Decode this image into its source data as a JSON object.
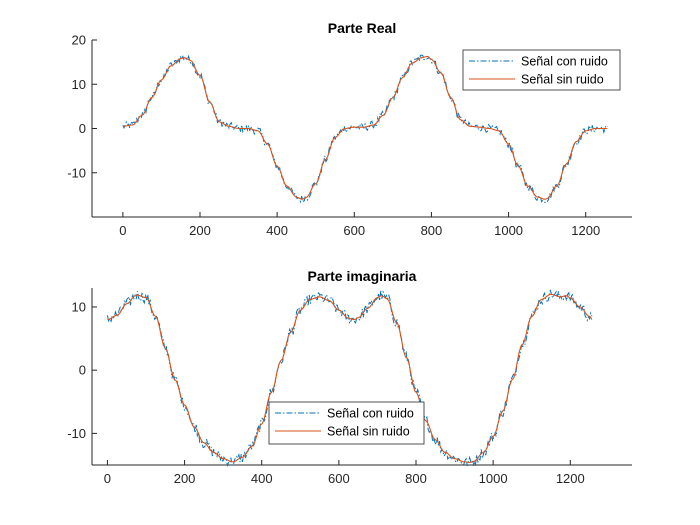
{
  "chart_data": [
    {
      "type": "line",
      "title": "Parte Real",
      "xlabel": "",
      "ylabel": "",
      "xlim": [
        -80,
        1320
      ],
      "ylim": [
        -20,
        20
      ],
      "xticks": [
        0,
        200,
        400,
        600,
        800,
        1000,
        1200
      ],
      "yticks": [
        -10,
        0,
        10,
        20
      ],
      "legend_position": "top-right",
      "grid": false,
      "series": [
        {
          "name": "Señal con ruido",
          "color": "#0072bd",
          "style": "dash-dot",
          "noisy": true,
          "x": [
            0,
            25,
            50,
            75,
            100,
            125,
            150,
            160,
            175,
            200,
            225,
            250,
            275,
            300,
            325,
            350,
            375,
            400,
            425,
            450,
            465,
            475,
            500,
            525,
            550,
            575,
            600,
            625,
            650,
            675,
            700,
            725,
            750,
            775,
            790,
            800,
            825,
            850,
            875,
            900,
            925,
            950,
            975,
            1000,
            1025,
            1050,
            1075,
            1095,
            1100,
            1125,
            1150,
            1175,
            1200,
            1225,
            1250,
            1256
          ],
          "y": [
            0.5,
            0.8,
            3.0,
            7.0,
            11.0,
            14.2,
            15.8,
            16.0,
            15.4,
            12.0,
            6.0,
            1.5,
            0.5,
            0.0,
            0.0,
            -0.5,
            -3.5,
            -8.5,
            -13.0,
            -15.5,
            -16.0,
            -15.6,
            -12.5,
            -7.0,
            -2.0,
            0.0,
            0.3,
            0.3,
            0.8,
            3.0,
            7.0,
            11.5,
            14.8,
            16.0,
            16.3,
            15.6,
            12.5,
            7.0,
            2.0,
            0.5,
            0.3,
            0.0,
            -0.5,
            -3.5,
            -8.5,
            -13.0,
            -15.5,
            -16.0,
            -15.8,
            -13.0,
            -8.0,
            -3.0,
            -0.5,
            0.0,
            0.0,
            0.0
          ]
        },
        {
          "name": "Señal sin ruido",
          "color": "#d95319",
          "style": "solid",
          "noisy": false,
          "x": [
            0,
            25,
            50,
            75,
            100,
            125,
            150,
            160,
            175,
            200,
            225,
            250,
            275,
            300,
            325,
            350,
            375,
            400,
            425,
            450,
            465,
            475,
            500,
            525,
            550,
            575,
            600,
            625,
            650,
            675,
            700,
            725,
            750,
            775,
            790,
            800,
            825,
            850,
            875,
            900,
            925,
            950,
            975,
            1000,
            1025,
            1050,
            1075,
            1095,
            1100,
            1125,
            1150,
            1175,
            1200,
            1225,
            1250,
            1256
          ],
          "y": [
            0.5,
            0.8,
            3.0,
            7.0,
            11.0,
            14.2,
            15.8,
            16.0,
            15.4,
            12.0,
            6.0,
            1.5,
            0.5,
            0.0,
            0.0,
            -0.5,
            -3.5,
            -8.5,
            -13.0,
            -15.5,
            -16.0,
            -15.6,
            -12.5,
            -7.0,
            -2.0,
            0.0,
            0.3,
            0.3,
            0.8,
            3.0,
            7.0,
            11.5,
            14.8,
            16.0,
            16.3,
            15.6,
            12.5,
            7.0,
            2.0,
            0.5,
            0.3,
            0.0,
            -0.5,
            -3.5,
            -8.5,
            -13.0,
            -15.5,
            -16.0,
            -15.8,
            -13.0,
            -8.0,
            -3.0,
            -0.5,
            0.0,
            0.0,
            0.0
          ]
        }
      ]
    },
    {
      "type": "line",
      "title": "Parte imaginaria",
      "xlabel": "",
      "ylabel": "",
      "xlim": [
        -40,
        1360
      ],
      "ylim": [
        -15,
        13
      ],
      "xticks": [
        0,
        200,
        400,
        600,
        800,
        1000,
        1200
      ],
      "yticks": [
        -10,
        0,
        10
      ],
      "legend_position": "bottom-center",
      "grid": false,
      "series": [
        {
          "name": "Señal con ruido",
          "color": "#0072bd",
          "style": "dash-dot",
          "noisy": true,
          "x": [
            0,
            25,
            50,
            75,
            100,
            125,
            150,
            175,
            200,
            225,
            250,
            275,
            300,
            325,
            350,
            375,
            400,
            425,
            450,
            475,
            500,
            525,
            550,
            575,
            600,
            625,
            640,
            650,
            675,
            700,
            710,
            725,
            750,
            775,
            800,
            825,
            850,
            875,
            900,
            925,
            940,
            950,
            975,
            1000,
            1025,
            1050,
            1075,
            1100,
            1125,
            1150,
            1175,
            1190,
            1200,
            1225,
            1250,
            1256
          ],
          "y": [
            8.0,
            8.7,
            10.5,
            11.9,
            11.5,
            8.5,
            3.5,
            -1.5,
            -5.5,
            -9.0,
            -11.5,
            -13.0,
            -14.0,
            -14.5,
            -13.8,
            -12.0,
            -8.5,
            -3.5,
            1.5,
            6.0,
            9.5,
            11.2,
            11.6,
            11.0,
            9.5,
            8.2,
            8.0,
            8.3,
            9.8,
            11.5,
            11.8,
            11.3,
            7.5,
            2.0,
            -3.5,
            -8.0,
            -11.0,
            -13.0,
            -14.0,
            -14.5,
            -14.6,
            -14.4,
            -13.0,
            -10.5,
            -6.5,
            -1.5,
            4.0,
            8.5,
            11.2,
            12.0,
            11.6,
            11.8,
            11.4,
            10.0,
            8.5,
            8.0
          ]
        },
        {
          "name": "Señal sin ruido",
          "color": "#d95319",
          "style": "solid",
          "noisy": false,
          "x": [
            0,
            25,
            50,
            75,
            100,
            125,
            150,
            175,
            200,
            225,
            250,
            275,
            300,
            325,
            350,
            375,
            400,
            425,
            450,
            475,
            500,
            525,
            550,
            575,
            600,
            625,
            640,
            650,
            675,
            700,
            710,
            725,
            750,
            775,
            800,
            825,
            850,
            875,
            900,
            925,
            940,
            950,
            975,
            1000,
            1025,
            1050,
            1075,
            1100,
            1125,
            1150,
            1175,
            1190,
            1200,
            1225,
            1250,
            1256
          ],
          "y": [
            8.0,
            8.7,
            10.5,
            11.9,
            11.5,
            8.5,
            3.5,
            -1.5,
            -5.5,
            -9.0,
            -11.5,
            -13.0,
            -14.0,
            -14.5,
            -13.8,
            -12.0,
            -8.5,
            -3.5,
            1.5,
            6.0,
            9.5,
            11.2,
            11.6,
            11.0,
            9.5,
            8.2,
            8.0,
            8.3,
            9.8,
            11.5,
            11.8,
            11.3,
            7.5,
            2.0,
            -3.5,
            -8.0,
            -11.0,
            -13.0,
            -14.0,
            -14.5,
            -14.6,
            -14.4,
            -13.0,
            -10.5,
            -6.5,
            -1.5,
            4.0,
            8.5,
            11.2,
            12.0,
            11.6,
            11.8,
            11.4,
            10.0,
            8.5,
            8.0
          ]
        }
      ]
    }
  ]
}
